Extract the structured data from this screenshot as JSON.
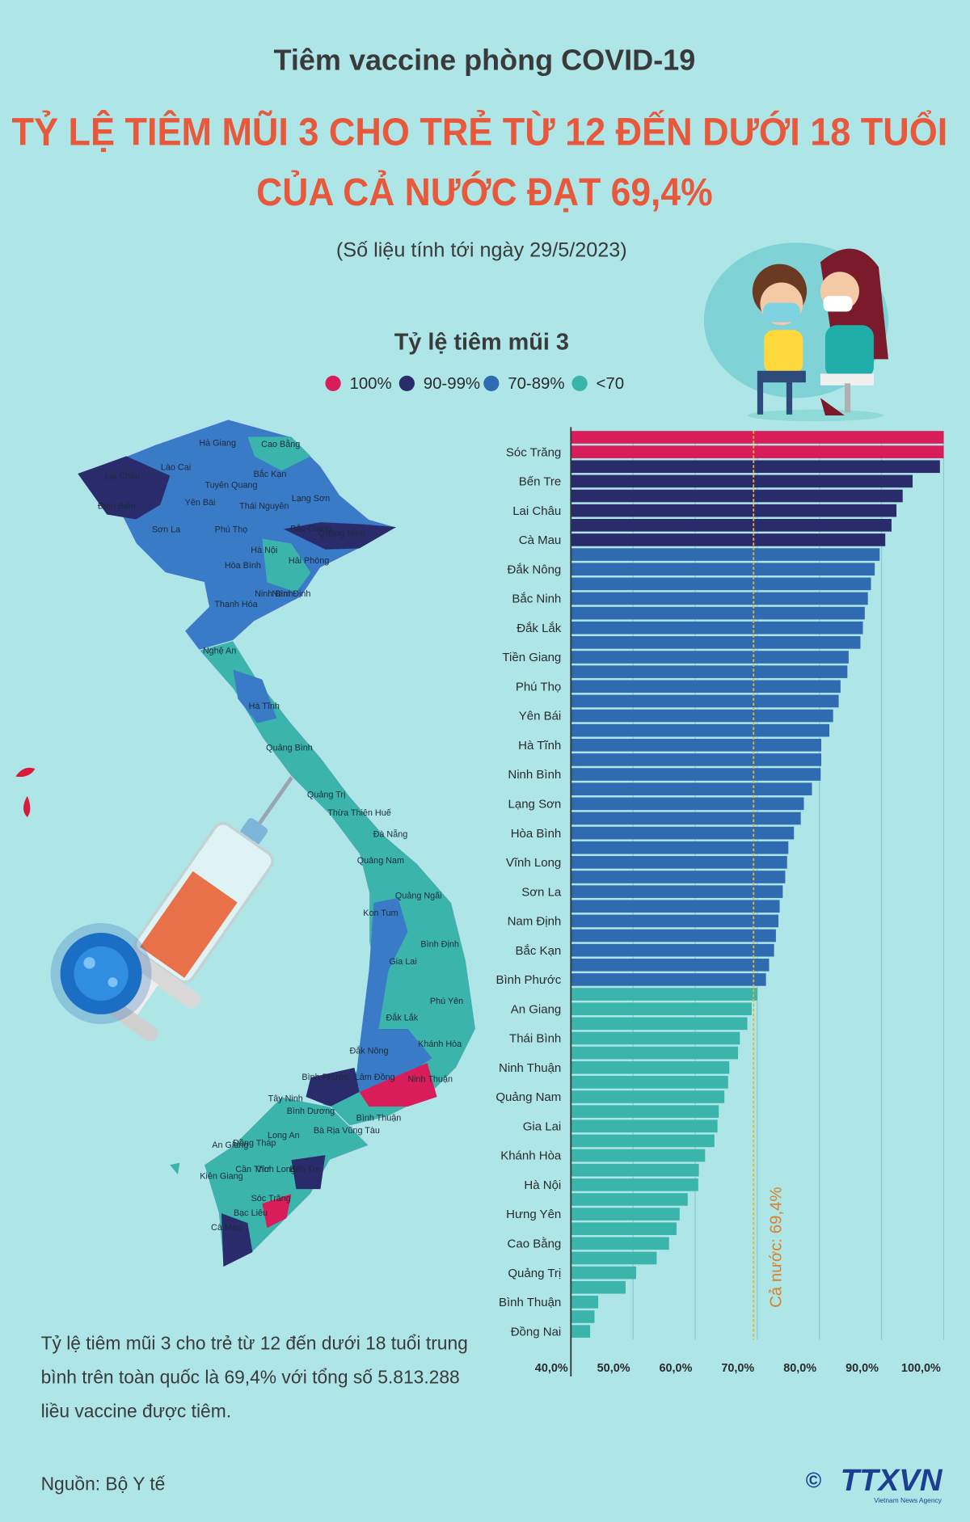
{
  "header": "Tiêm vaccine phòng COVID-19",
  "title": [
    "TỶ LỆ TIÊM MŨI 3 CHO TRẺ TỪ 12 ĐẾN DƯỚI 18 TUỔI",
    "CỦA CẢ NƯỚC ĐẠT 69,4%"
  ],
  "subtitle": "(Số liệu tính tới ngày 29/5/2023)",
  "summary": [
    "Tỷ lệ tiêm mũi 3 cho trẻ từ 12 đến dưới 18 tuổi trung",
    "bình trên toàn quốc là 69,4% với tổng số 5.813.288",
    "liều vaccine được tiêm."
  ],
  "source": "Nguồn: Bộ Y tế",
  "logo": {
    "mark": "©",
    "name": "TTXVN",
    "tagline": "Vietnam News Agency"
  },
  "map_labels": [
    "Hà Giang",
    "Cao Bằng",
    "Lào Cai",
    "Bắc Kạn",
    "Lai Châu",
    "Tuyên Quang",
    "Yên Bái",
    "Lạng Sơn",
    "Thái Nguyên",
    "Điện Biên",
    "Sơn La",
    "Phú Thọ",
    "Bắc Giang",
    "Quảng Ninh",
    "Hà Nội",
    "Hải Phòng",
    "Hòa Bình",
    "Ninh Bình",
    "Nam Định",
    "Thanh Hóa",
    "Nghệ An",
    "Hà Tĩnh",
    "Quảng Bình",
    "Quảng Trị",
    "Thừa Thiên Huế",
    "Đà Nẵng",
    "Quảng Nam",
    "Quảng Ngãi",
    "Kon Tum",
    "Bình Định",
    "Gia Lai",
    "Phú Yên",
    "Đắk Lắk",
    "Khánh Hòa",
    "Đắk Nông",
    "Bình Phước",
    "Lâm Đồng",
    "Ninh Thuận",
    "Tây Ninh",
    "Bình Dương",
    "Bình Thuận",
    "Bà Rịa Vũng Tàu",
    "Long An",
    "An Giang",
    "Đồng Tháp",
    "Cần Thơ",
    "Vĩnh Long",
    "Bến Tre",
    "Kiên Giang",
    "Sóc Trăng",
    "Bạc Liêu",
    "Cà Mau"
  ],
  "chart_data": {
    "type": "bar",
    "legend": {
      "title": "Tỷ lệ tiêm mũi 3",
      "items": [
        {
          "label": "100%",
          "color": "#d91d5a"
        },
        {
          "label": "90-99%",
          "color": "#2a2b6b"
        },
        {
          "label": "70-89%",
          "color": "#2e6bb0"
        },
        {
          "label": "<70",
          "color": "#3bb5ac"
        }
      ]
    },
    "categories": [
      null,
      "Sóc Trăng",
      null,
      "Bến Tre",
      null,
      "Lai Châu",
      null,
      "Cà Mau",
      null,
      "Đắk Nông",
      null,
      "Bắc Ninh",
      null,
      "Đắk Lắk",
      null,
      "Tiền Giang",
      null,
      "Phú Thọ",
      null,
      "Yên Bái",
      null,
      "Hà Tĩnh",
      null,
      "Ninh Bình",
      null,
      "Lạng Sơn",
      null,
      "Hòa Bình",
      null,
      "Vĩnh Long",
      null,
      "Sơn La",
      null,
      "Nam Định",
      null,
      "Bắc Kạn",
      null,
      "Bình Phước",
      null,
      "An Giang",
      null,
      "Thái Bình",
      null,
      "Ninh Thuận",
      null,
      "Quảng Nam",
      null,
      "Gia Lai",
      null,
      "Khánh Hòa",
      null,
      "Hà Nội",
      null,
      "Hưng Yên",
      null,
      "Cao Bằng",
      null,
      "Quảng Trị",
      null,
      "Bình Thuận",
      null,
      "Đồng Nai"
    ],
    "values": [
      100,
      100,
      99.4,
      95.0,
      93.4,
      92.4,
      91.6,
      90.6,
      89.7,
      88.9,
      88.3,
      87.8,
      87.3,
      87.0,
      86.6,
      84.7,
      84.5,
      83.4,
      83.1,
      82.2,
      81.6,
      80.3,
      80.3,
      80.2,
      78.8,
      77.5,
      77.0,
      75.9,
      75.0,
      74.8,
      74.5,
      74.1,
      73.6,
      73.4,
      73.0,
      72.7,
      71.9,
      71.4,
      70.0,
      69.1,
      68.4,
      67.2,
      66.9,
      65.5,
      65.3,
      64.7,
      63.8,
      63.6,
      63.1,
      61.6,
      60.6,
      60.5,
      58.8,
      57.5,
      57.0,
      55.8,
      53.8,
      50.5,
      48.8,
      44.4,
      43.8,
      43.1
    ],
    "colors": [
      "#d91d5a",
      "#d91d5a",
      "#2a2b6b",
      "#2a2b6b",
      "#2a2b6b",
      "#2a2b6b",
      "#2a2b6b",
      "#2a2b6b",
      "#2e6bb0",
      "#2e6bb0",
      "#2e6bb0",
      "#2e6bb0",
      "#2e6bb0",
      "#2e6bb0",
      "#2e6bb0",
      "#2e6bb0",
      "#2e6bb0",
      "#2e6bb0",
      "#2e6bb0",
      "#2e6bb0",
      "#2e6bb0",
      "#2e6bb0",
      "#2e6bb0",
      "#2e6bb0",
      "#2e6bb0",
      "#2e6bb0",
      "#2e6bb0",
      "#2e6bb0",
      "#2e6bb0",
      "#2e6bb0",
      "#2e6bb0",
      "#2e6bb0",
      "#2e6bb0",
      "#2e6bb0",
      "#2e6bb0",
      "#2e6bb0",
      "#2e6bb0",
      "#2e6bb0",
      "#3bb5ac",
      "#3bb5ac",
      "#3bb5ac",
      "#3bb5ac",
      "#3bb5ac",
      "#3bb5ac",
      "#3bb5ac",
      "#3bb5ac",
      "#3bb5ac",
      "#3bb5ac",
      "#3bb5ac",
      "#3bb5ac",
      "#3bb5ac",
      "#3bb5ac",
      "#3bb5ac",
      "#3bb5ac",
      "#3bb5ac",
      "#3bb5ac",
      "#3bb5ac",
      "#3bb5ac",
      "#3bb5ac",
      "#3bb5ac",
      "#3bb5ac",
      "#3bb5ac"
    ],
    "xlim": [
      40,
      100
    ],
    "xticks": [
      {
        "value": 40,
        "label": "40,0%"
      },
      {
        "value": 50,
        "label": "50,0%"
      },
      {
        "value": 60,
        "label": "60,0%"
      },
      {
        "value": 70,
        "label": "70,0%"
      },
      {
        "value": 80,
        "label": "80,0%"
      },
      {
        "value": 90,
        "label": "90,0%"
      },
      {
        "value": 100,
        "label": "100,0%"
      }
    ],
    "grid": true,
    "reference": {
      "value": 69.4,
      "label": "Cả nước: 69,4%",
      "color": "#e8b430"
    }
  }
}
